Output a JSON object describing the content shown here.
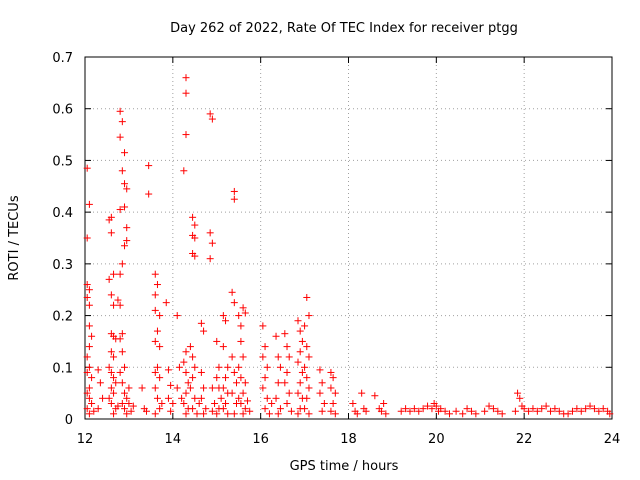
{
  "chart_data": {
    "type": "scatter",
    "title": "Day 262 of 2022, Rate Of TEC Index for receiver ptgg",
    "xlabel": "GPS time / hours",
    "ylabel": "ROTI / TECUs",
    "xlim": [
      12,
      24
    ],
    "ylim": [
      0,
      0.7
    ],
    "x_ticks": [
      "12",
      "14",
      "16",
      "18",
      "20",
      "22",
      "24"
    ],
    "y_ticks": [
      "0",
      "0.1",
      "0.2",
      "0.3",
      "0.4",
      "0.5",
      "0.6",
      "0.7"
    ],
    "grid": true,
    "marker": "plus",
    "color": "#ff0000",
    "series": [
      {
        "name": "ROTI",
        "points": [
          [
            12.05,
            0.485
          ],
          [
            12.1,
            0.415
          ],
          [
            12.05,
            0.35
          ],
          [
            12.05,
            0.26
          ],
          [
            12.1,
            0.25
          ],
          [
            12.05,
            0.235
          ],
          [
            12.1,
            0.22
          ],
          [
            12.1,
            0.18
          ],
          [
            12.15,
            0.16
          ],
          [
            12.1,
            0.14
          ],
          [
            12.05,
            0.12
          ],
          [
            12.1,
            0.1
          ],
          [
            12.05,
            0.09
          ],
          [
            12.15,
            0.08
          ],
          [
            12.1,
            0.06
          ],
          [
            12.05,
            0.05
          ],
          [
            12.1,
            0.04
          ],
          [
            12.15,
            0.03
          ],
          [
            12.05,
            0.02
          ],
          [
            12.1,
            0.01
          ],
          [
            12.2,
            0.015
          ],
          [
            12.3,
            0.095
          ],
          [
            12.35,
            0.07
          ],
          [
            12.3,
            0.02
          ],
          [
            12.4,
            0.04
          ],
          [
            12.55,
            0.385
          ],
          [
            12.6,
            0.39
          ],
          [
            12.6,
            0.36
          ],
          [
            12.65,
            0.28
          ],
          [
            12.55,
            0.27
          ],
          [
            12.6,
            0.24
          ],
          [
            12.65,
            0.22
          ],
          [
            12.6,
            0.165
          ],
          [
            12.65,
            0.16
          ],
          [
            12.7,
            0.155
          ],
          [
            12.6,
            0.13
          ],
          [
            12.65,
            0.12
          ],
          [
            12.55,
            0.1
          ],
          [
            12.6,
            0.09
          ],
          [
            12.65,
            0.08
          ],
          [
            12.7,
            0.07
          ],
          [
            12.6,
            0.06
          ],
          [
            12.65,
            0.05
          ],
          [
            12.55,
            0.04
          ],
          [
            12.6,
            0.03
          ],
          [
            12.7,
            0.02
          ],
          [
            12.65,
            0.01
          ],
          [
            12.75,
            0.025
          ],
          [
            12.8,
            0.595
          ],
          [
            12.85,
            0.575
          ],
          [
            12.8,
            0.545
          ],
          [
            12.9,
            0.515
          ],
          [
            12.85,
            0.48
          ],
          [
            12.9,
            0.455
          ],
          [
            12.95,
            0.445
          ],
          [
            12.9,
            0.41
          ],
          [
            12.8,
            0.405
          ],
          [
            12.85,
            0.3
          ],
          [
            12.8,
            0.28
          ],
          [
            12.95,
            0.37
          ],
          [
            12.95,
            0.345
          ],
          [
            12.9,
            0.335
          ],
          [
            12.75,
            0.23
          ],
          [
            12.8,
            0.22
          ],
          [
            12.85,
            0.165
          ],
          [
            12.8,
            0.155
          ],
          [
            12.85,
            0.13
          ],
          [
            12.9,
            0.1
          ],
          [
            12.8,
            0.09
          ],
          [
            12.85,
            0.07
          ],
          [
            12.9,
            0.05
          ],
          [
            12.95,
            0.04
          ],
          [
            12.85,
            0.03
          ],
          [
            12.9,
            0.02
          ],
          [
            12.95,
            0.01
          ],
          [
            13.0,
            0.03
          ],
          [
            13.0,
            0.06
          ],
          [
            13.05,
            0.015
          ],
          [
            13.1,
            0.025
          ],
          [
            13.3,
            0.06
          ],
          [
            13.35,
            0.02
          ],
          [
            13.4,
            0.015
          ],
          [
            13.45,
            0.49
          ],
          [
            13.45,
            0.435
          ],
          [
            13.6,
            0.28
          ],
          [
            13.65,
            0.26
          ],
          [
            13.6,
            0.24
          ],
          [
            13.6,
            0.21
          ],
          [
            13.7,
            0.2
          ],
          [
            13.65,
            0.17
          ],
          [
            13.6,
            0.15
          ],
          [
            13.7,
            0.14
          ],
          [
            13.65,
            0.1
          ],
          [
            13.6,
            0.09
          ],
          [
            13.7,
            0.08
          ],
          [
            13.6,
            0.06
          ],
          [
            13.65,
            0.04
          ],
          [
            13.7,
            0.02
          ],
          [
            13.6,
            0.01
          ],
          [
            13.75,
            0.03
          ],
          [
            13.85,
            0.225
          ],
          [
            13.9,
            0.095
          ],
          [
            13.95,
            0.065
          ],
          [
            13.9,
            0.04
          ],
          [
            14.0,
            0.03
          ],
          [
            13.95,
            0.015
          ],
          [
            14.1,
            0.2
          ],
          [
            14.15,
            0.1
          ],
          [
            14.1,
            0.06
          ],
          [
            14.2,
            0.04
          ],
          [
            14.3,
            0.66
          ],
          [
            14.3,
            0.63
          ],
          [
            14.3,
            0.55
          ],
          [
            14.25,
            0.48
          ],
          [
            14.3,
            0.13
          ],
          [
            14.25,
            0.11
          ],
          [
            14.3,
            0.09
          ],
          [
            14.35,
            0.07
          ],
          [
            14.3,
            0.05
          ],
          [
            14.25,
            0.03
          ],
          [
            14.35,
            0.02
          ],
          [
            14.3,
            0.01
          ],
          [
            14.45,
            0.39
          ],
          [
            14.5,
            0.375
          ],
          [
            14.45,
            0.355
          ],
          [
            14.5,
            0.35
          ],
          [
            14.45,
            0.32
          ],
          [
            14.5,
            0.315
          ],
          [
            14.4,
            0.14
          ],
          [
            14.45,
            0.12
          ],
          [
            14.5,
            0.1
          ],
          [
            14.45,
            0.08
          ],
          [
            14.4,
            0.06
          ],
          [
            14.5,
            0.04
          ],
          [
            14.45,
            0.02
          ],
          [
            14.55,
            0.01
          ],
          [
            14.6,
            0.03
          ],
          [
            14.65,
            0.185
          ],
          [
            14.7,
            0.17
          ],
          [
            14.65,
            0.09
          ],
          [
            14.7,
            0.06
          ],
          [
            14.65,
            0.04
          ],
          [
            14.75,
            0.02
          ],
          [
            14.7,
            0.01
          ],
          [
            14.85,
            0.59
          ],
          [
            14.9,
            0.58
          ],
          [
            14.85,
            0.36
          ],
          [
            14.9,
            0.34
          ],
          [
            14.85,
            0.31
          ],
          [
            14.9,
            0.06
          ],
          [
            14.95,
            0.03
          ],
          [
            14.9,
            0.015
          ],
          [
            15.0,
            0.15
          ],
          [
            15.05,
            0.1
          ],
          [
            15.0,
            0.08
          ],
          [
            15.05,
            0.06
          ],
          [
            15.1,
            0.04
          ],
          [
            15.05,
            0.02
          ],
          [
            15.0,
            0.01
          ],
          [
            15.15,
            0.2
          ],
          [
            15.2,
            0.19
          ],
          [
            15.15,
            0.14
          ],
          [
            15.25,
            0.1
          ],
          [
            15.2,
            0.08
          ],
          [
            15.15,
            0.06
          ],
          [
            15.25,
            0.05
          ],
          [
            15.2,
            0.03
          ],
          [
            15.15,
            0.02
          ],
          [
            15.25,
            0.01
          ],
          [
            15.35,
            0.245
          ],
          [
            15.4,
            0.225
          ],
          [
            15.4,
            0.44
          ],
          [
            15.4,
            0.425
          ],
          [
            15.35,
            0.12
          ],
          [
            15.4,
            0.09
          ],
          [
            15.45,
            0.07
          ],
          [
            15.35,
            0.05
          ],
          [
            15.45,
            0.03
          ],
          [
            15.4,
            0.01
          ],
          [
            15.5,
            0.2
          ],
          [
            15.55,
            0.18
          ],
          [
            15.6,
            0.215
          ],
          [
            15.65,
            0.205
          ],
          [
            15.55,
            0.15
          ],
          [
            15.6,
            0.12
          ],
          [
            15.5,
            0.1
          ],
          [
            15.55,
            0.08
          ],
          [
            15.65,
            0.07
          ],
          [
            15.6,
            0.05
          ],
          [
            15.5,
            0.04
          ],
          [
            15.55,
            0.03
          ],
          [
            15.65,
            0.02
          ],
          [
            15.6,
            0.01
          ],
          [
            15.7,
            0.035
          ],
          [
            15.75,
            0.015
          ],
          [
            16.05,
            0.18
          ],
          [
            16.1,
            0.14
          ],
          [
            16.05,
            0.12
          ],
          [
            16.15,
            0.1
          ],
          [
            16.1,
            0.08
          ],
          [
            16.05,
            0.06
          ],
          [
            16.15,
            0.04
          ],
          [
            16.1,
            0.02
          ],
          [
            16.2,
            0.01
          ],
          [
            16.25,
            0.03
          ],
          [
            16.35,
            0.16
          ],
          [
            16.4,
            0.12
          ],
          [
            16.45,
            0.1
          ],
          [
            16.4,
            0.07
          ],
          [
            16.35,
            0.04
          ],
          [
            16.45,
            0.02
          ],
          [
            16.4,
            0.01
          ],
          [
            16.55,
            0.165
          ],
          [
            16.6,
            0.14
          ],
          [
            16.65,
            0.12
          ],
          [
            16.6,
            0.09
          ],
          [
            16.55,
            0.07
          ],
          [
            16.65,
            0.05
          ],
          [
            16.6,
            0.03
          ],
          [
            16.7,
            0.015
          ],
          [
            16.85,
            0.19
          ],
          [
            16.9,
            0.17
          ],
          [
            16.95,
            0.15
          ],
          [
            16.9,
            0.13
          ],
          [
            16.85,
            0.11
          ],
          [
            16.95,
            0.09
          ],
          [
            16.9,
            0.07
          ],
          [
            16.85,
            0.05
          ],
          [
            16.95,
            0.04
          ],
          [
            16.9,
            0.02
          ],
          [
            16.85,
            0.01
          ],
          [
            17.05,
            0.235
          ],
          [
            17.1,
            0.2
          ],
          [
            17.0,
            0.18
          ],
          [
            17.05,
            0.14
          ],
          [
            17.1,
            0.12
          ],
          [
            17.0,
            0.1
          ],
          [
            17.05,
            0.08
          ],
          [
            17.1,
            0.06
          ],
          [
            17.05,
            0.04
          ],
          [
            17.0,
            0.02
          ],
          [
            17.1,
            0.01
          ],
          [
            17.35,
            0.095
          ],
          [
            17.4,
            0.07
          ],
          [
            17.35,
            0.05
          ],
          [
            17.45,
            0.03
          ],
          [
            17.4,
            0.015
          ],
          [
            17.6,
            0.09
          ],
          [
            17.65,
            0.08
          ],
          [
            17.6,
            0.06
          ],
          [
            17.7,
            0.05
          ],
          [
            17.65,
            0.03
          ],
          [
            17.6,
            0.015
          ],
          [
            17.7,
            0.01
          ],
          [
            18.1,
            0.03
          ],
          [
            18.15,
            0.015
          ],
          [
            18.2,
            0.01
          ],
          [
            18.3,
            0.05
          ],
          [
            18.35,
            0.02
          ],
          [
            18.4,
            0.015
          ],
          [
            18.6,
            0.045
          ],
          [
            18.7,
            0.02
          ],
          [
            18.75,
            0.015
          ],
          [
            18.8,
            0.03
          ],
          [
            18.85,
            0.01
          ],
          [
            19.2,
            0.015
          ],
          [
            19.3,
            0.02
          ],
          [
            19.4,
            0.015
          ],
          [
            19.5,
            0.02
          ],
          [
            19.6,
            0.015
          ],
          [
            19.7,
            0.02
          ],
          [
            19.8,
            0.025
          ],
          [
            19.9,
            0.02
          ],
          [
            19.95,
            0.03
          ],
          [
            20.0,
            0.025
          ],
          [
            20.05,
            0.015
          ],
          [
            20.1,
            0.02
          ],
          [
            20.2,
            0.015
          ],
          [
            20.3,
            0.01
          ],
          [
            20.45,
            0.015
          ],
          [
            20.6,
            0.01
          ],
          [
            20.7,
            0.02
          ],
          [
            20.8,
            0.015
          ],
          [
            20.9,
            0.01
          ],
          [
            21.1,
            0.015
          ],
          [
            21.2,
            0.025
          ],
          [
            21.3,
            0.02
          ],
          [
            21.4,
            0.015
          ],
          [
            21.5,
            0.01
          ],
          [
            21.8,
            0.015
          ],
          [
            21.85,
            0.05
          ],
          [
            21.9,
            0.04
          ],
          [
            21.95,
            0.025
          ],
          [
            22.0,
            0.02
          ],
          [
            22.1,
            0.015
          ],
          [
            22.2,
            0.02
          ],
          [
            22.3,
            0.015
          ],
          [
            22.4,
            0.02
          ],
          [
            22.5,
            0.025
          ],
          [
            22.6,
            0.015
          ],
          [
            22.7,
            0.02
          ],
          [
            22.8,
            0.015
          ],
          [
            22.9,
            0.01
          ],
          [
            23.0,
            0.01
          ],
          [
            23.1,
            0.015
          ],
          [
            23.2,
            0.02
          ],
          [
            23.3,
            0.015
          ],
          [
            23.4,
            0.02
          ],
          [
            23.5,
            0.025
          ],
          [
            23.6,
            0.02
          ],
          [
            23.7,
            0.015
          ],
          [
            23.8,
            0.02
          ],
          [
            23.9,
            0.015
          ],
          [
            23.95,
            0.01
          ]
        ]
      }
    ]
  }
}
